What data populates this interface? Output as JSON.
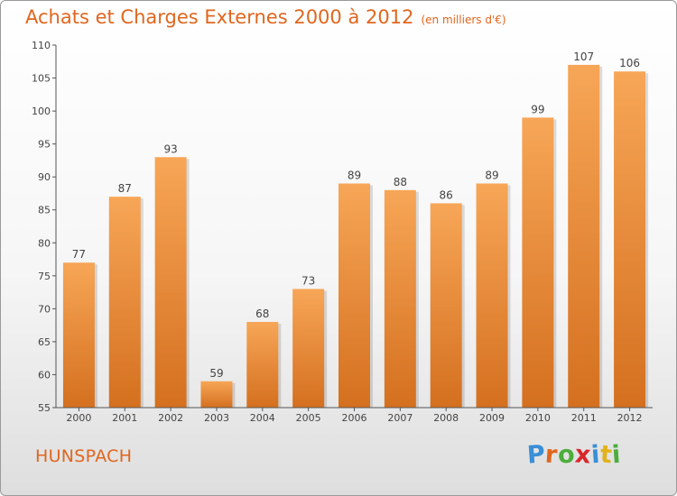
{
  "chart_data": {
    "type": "bar",
    "title": "Achats et Charges Externes 2000 à 2012",
    "subtitle": "(en milliers d'€)",
    "categories": [
      "2000",
      "2001",
      "2002",
      "2003",
      "2004",
      "2005",
      "2006",
      "2007",
      "2008",
      "2009",
      "2010",
      "2011",
      "2012"
    ],
    "values": [
      77,
      87,
      93,
      59,
      68,
      73,
      89,
      88,
      86,
      89,
      99,
      107,
      106
    ],
    "ylim": [
      55,
      110
    ],
    "yticks": [
      55,
      60,
      65,
      70,
      75,
      80,
      85,
      90,
      95,
      100,
      105,
      110
    ],
    "grid": false,
    "bar_color": "#f09a44"
  },
  "location": "HUNSPACH",
  "brand": {
    "letters": [
      "P",
      "r",
      "o",
      "x",
      "i",
      "t",
      "i"
    ],
    "colors": [
      "#3a8fd6",
      "#e0661e",
      "#4bae3b",
      "#d9262b",
      "#3a8fd6",
      "#e2b319",
      "#4bae3b"
    ]
  }
}
